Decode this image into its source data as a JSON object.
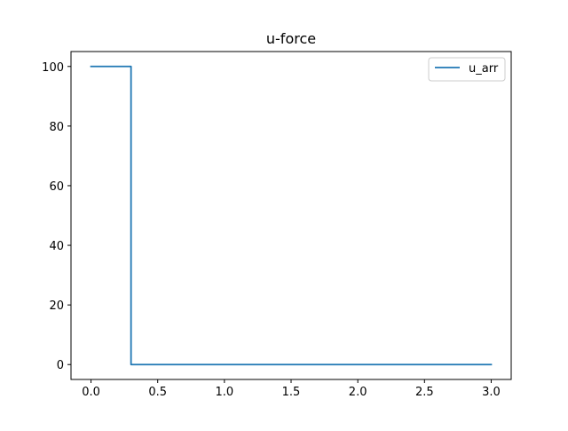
{
  "chart_data": {
    "type": "line",
    "title": "u-force",
    "xlabel": "",
    "ylabel": "",
    "xlim": [
      -0.15,
      3.15
    ],
    "ylim": [
      -5,
      105
    ],
    "xticks": [
      0.0,
      0.5,
      1.0,
      1.5,
      2.0,
      2.5,
      3.0
    ],
    "xtick_labels": [
      "0.0",
      "0.5",
      "1.0",
      "1.5",
      "2.0",
      "2.5",
      "3.0"
    ],
    "yticks": [
      0,
      20,
      40,
      60,
      80,
      100
    ],
    "ytick_labels": [
      "0",
      "20",
      "40",
      "60",
      "80",
      "100"
    ],
    "grid": false,
    "legend": "top-right",
    "series": [
      {
        "name": "u_arr",
        "color": "#1f77b4",
        "x": [
          0.0,
          0.3,
          0.3,
          3.0
        ],
        "y": [
          100,
          100,
          0,
          0
        ]
      }
    ]
  }
}
